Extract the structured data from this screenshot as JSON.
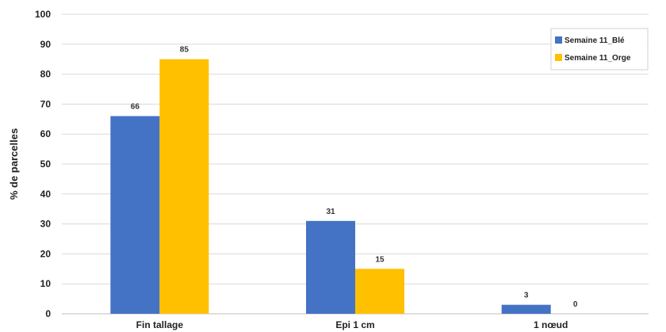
{
  "chart_data": {
    "type": "bar",
    "title": "",
    "xlabel": "",
    "ylabel": "% de parcelles",
    "ylim": [
      0,
      100
    ],
    "yticks": [
      0,
      10,
      20,
      30,
      40,
      50,
      60,
      70,
      80,
      90,
      100
    ],
    "categories": [
      "Fin tallage",
      "Epi 1 cm",
      "1 nœud"
    ],
    "series": [
      {
        "name": "Semaine 11_Blé",
        "values": [
          66,
          31,
          3
        ],
        "color": "#4472C4"
      },
      {
        "name": "Semaine 11_Orge",
        "values": [
          85,
          15,
          0
        ],
        "color": "#FFC000"
      }
    ],
    "grid": true,
    "legend_position": "top-right",
    "data_labels": true
  }
}
